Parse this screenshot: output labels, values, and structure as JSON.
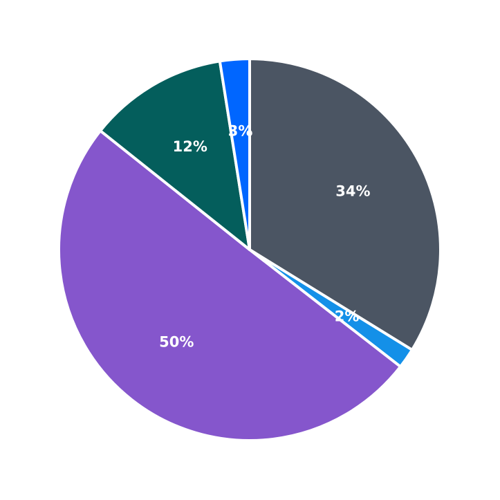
{
  "chart_data": {
    "type": "pie",
    "title": "",
    "start_angle_deg": 0,
    "direction": "clockwise",
    "slices": [
      {
        "label": "34%",
        "value": 33.8,
        "color": "#4b5563"
      },
      {
        "label": "2%",
        "value": 1.7,
        "color": "#1490e8"
      },
      {
        "label": "50%",
        "value": 50.2,
        "color": "#8556cc"
      },
      {
        "label": "12%",
        "value": 11.8,
        "color": "#045e5c"
      },
      {
        "label": "3%",
        "value": 2.5,
        "color": "#0066ff"
      }
    ],
    "legend": null
  }
}
